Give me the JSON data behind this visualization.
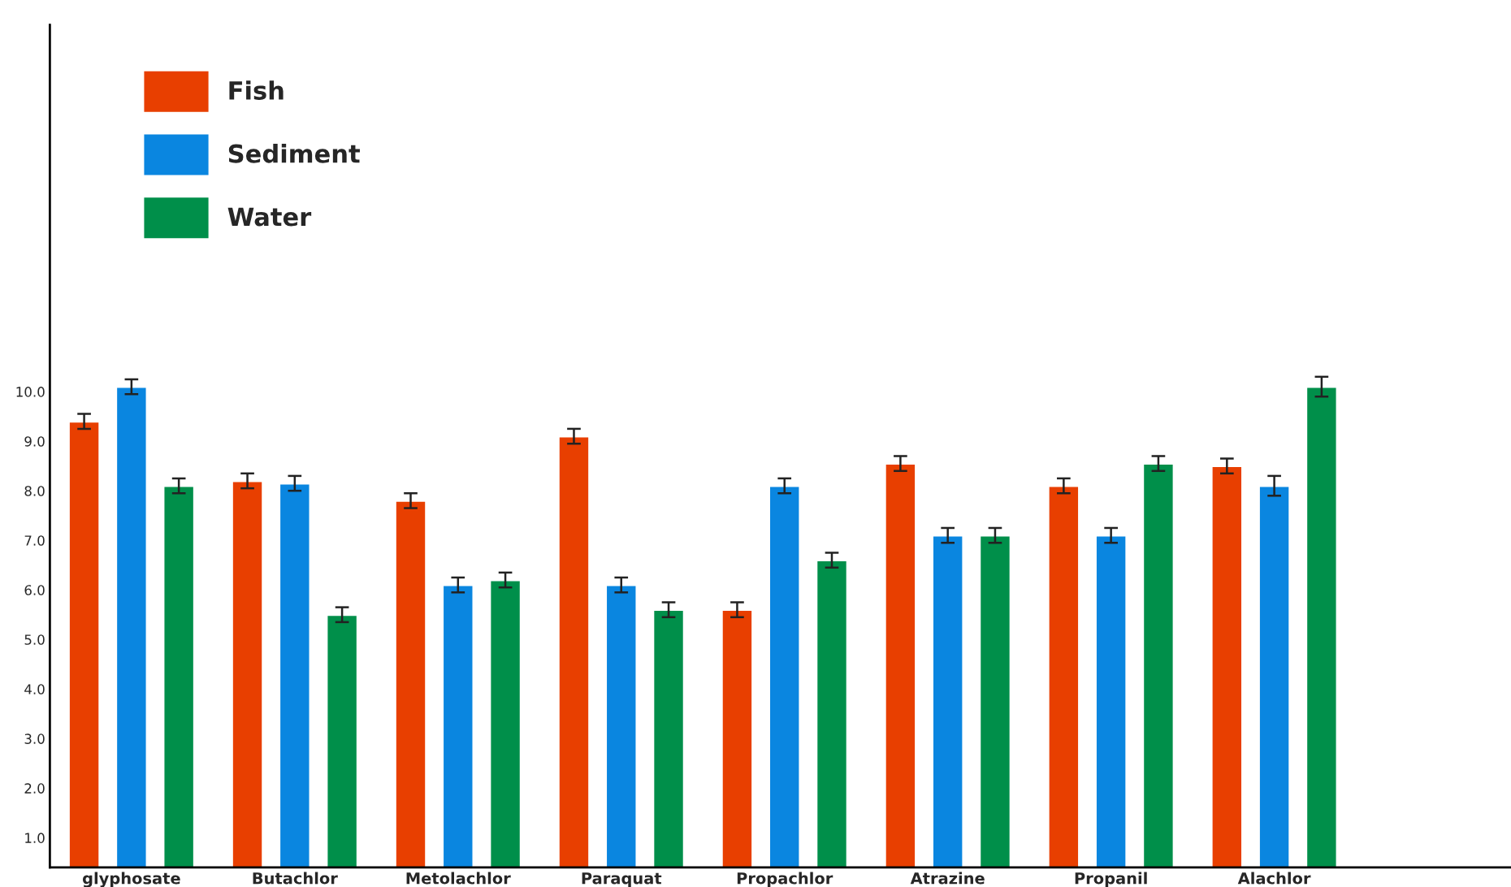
{
  "chart_data": {
    "type": "bar",
    "categories": [
      "glyphosate",
      "Butachlor",
      "Metolachlor",
      "Paraquat",
      "Propachlor",
      "Atrazine",
      "Propanil",
      "Alachlor"
    ],
    "series": [
      {
        "name": "Fish",
        "color": "#e83f00",
        "values": [
          9.4,
          8.2,
          7.8,
          9.1,
          5.6,
          8.55,
          8.1,
          8.5
        ],
        "errors": [
          0.15,
          0.15,
          0.15,
          0.15,
          0.15,
          0.15,
          0.15,
          0.15
        ]
      },
      {
        "name": "Sediment",
        "color": "#0a86e0",
        "values": [
          10.1,
          8.15,
          6.1,
          6.1,
          8.1,
          7.1,
          7.1,
          8.1
        ],
        "errors": [
          0.15,
          0.15,
          0.15,
          0.15,
          0.15,
          0.15,
          0.15,
          0.2
        ]
      },
      {
        "name": "Water",
        "color": "#008f4a",
        "values": [
          8.1,
          5.5,
          6.2,
          5.6,
          6.6,
          7.1,
          8.55,
          10.1
        ],
        "errors": [
          0.15,
          0.15,
          0.15,
          0.15,
          0.15,
          0.15,
          0.15,
          0.2
        ]
      }
    ],
    "ylim": [
      0.4,
      17.4
    ],
    "yticks": [
      {
        "value": 1,
        "label": "1.0"
      },
      {
        "value": 2,
        "label": "2.0"
      },
      {
        "value": 3,
        "label": "3.0"
      },
      {
        "value": 4,
        "label": "4.0"
      },
      {
        "value": 5,
        "label": "5.0"
      },
      {
        "value": 6,
        "label": "6.0"
      },
      {
        "value": 7,
        "label": "7.0"
      },
      {
        "value": 8,
        "label": "8.0"
      },
      {
        "value": 9,
        "label": "9.0"
      },
      {
        "value": 10,
        "label": "10.0"
      }
    ],
    "grid": false,
    "legend": "top left"
  }
}
